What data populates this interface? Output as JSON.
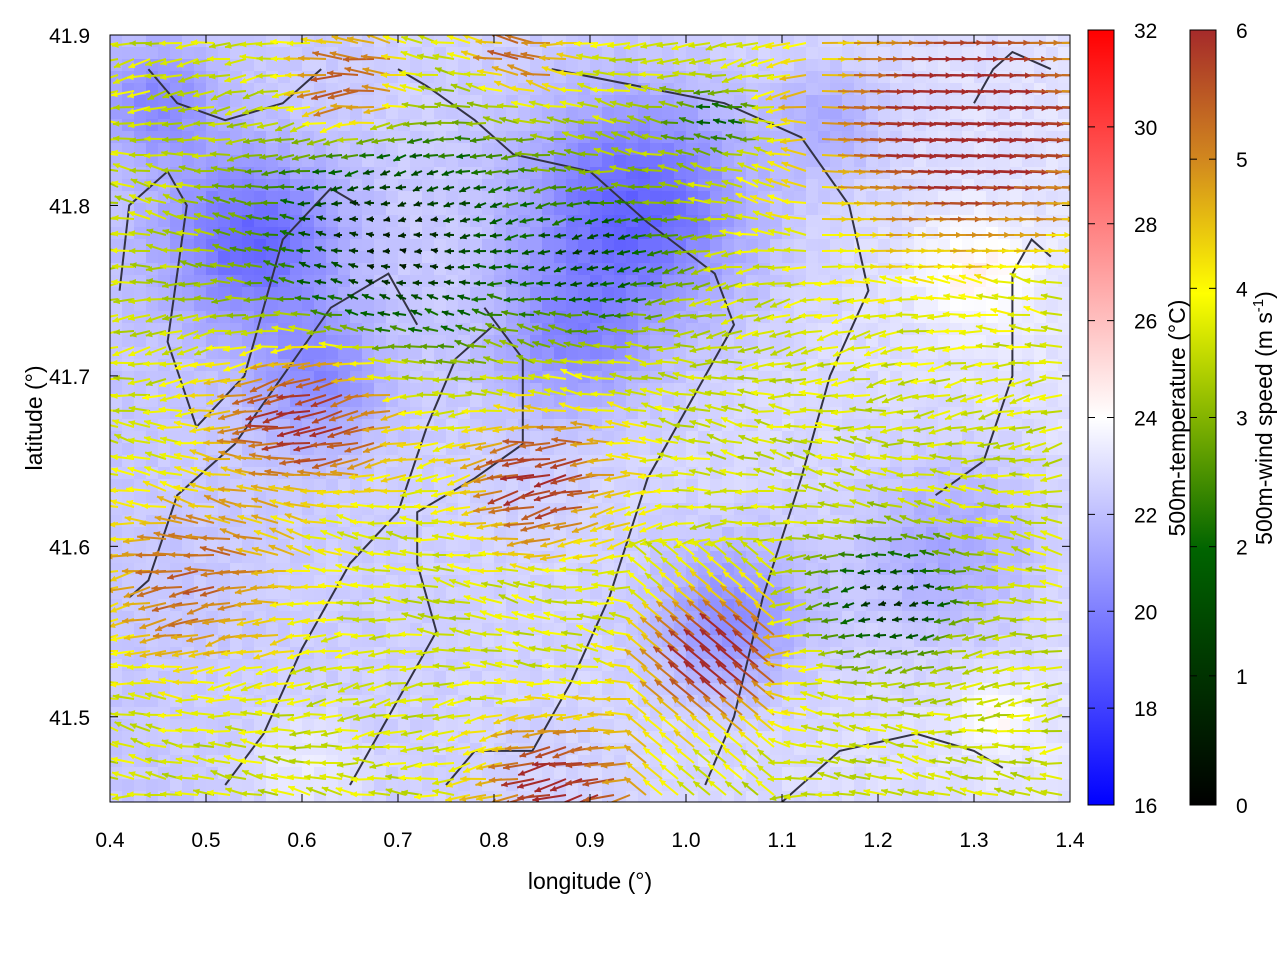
{
  "chart_data": {
    "type": "vector-field-heatmap",
    "xlabel": "longitude (°)",
    "ylabel": "latitude (°)",
    "xlim": [
      0.4,
      1.4
    ],
    "ylim": [
      41.45,
      41.9
    ],
    "xticks": [
      "0.4",
      "0.5",
      "0.6",
      "0.7",
      "0.8",
      "0.9",
      "1.0",
      "1.1",
      "1.2",
      "1.3",
      "1.4"
    ],
    "yticks": [
      "41.5",
      "41.6",
      "41.7",
      "41.8",
      "41.9"
    ],
    "temperature_colorbar": {
      "label": "500m-temperature (°C)",
      "range": [
        16,
        32
      ],
      "ticks": [
        "16",
        "18",
        "20",
        "22",
        "24",
        "26",
        "28",
        "30",
        "32"
      ],
      "colors": [
        "#0000ff",
        "#ffffff",
        "#ff0000"
      ]
    },
    "wind_colorbar": {
      "label": "500m-wind speed (m s",
      "label_sup": "-1",
      "label_end": ")",
      "range": [
        0,
        6
      ],
      "ticks": [
        "0",
        "1",
        "2",
        "3",
        "4",
        "5",
        "6"
      ],
      "colors": [
        "#000000",
        "#006400",
        "#ffff00",
        "#d2891e",
        "#a52a2a"
      ]
    },
    "temperature_background": "mostly 18–24 °C: cool blue pockets near (0.55, 41.78) and (0.95, 41.8); near-white band toward the east",
    "wind_field": "arrows mostly point west (easterly flow); fastest (~6 m s-1) in the NE corner near (1.2–1.4, 41.88–41.8), around (0.55–0.75, 41.68) and around (1.0–1.08, 41.5–41.6)",
    "contours": "dark grey terrain contour lines across the domain"
  }
}
